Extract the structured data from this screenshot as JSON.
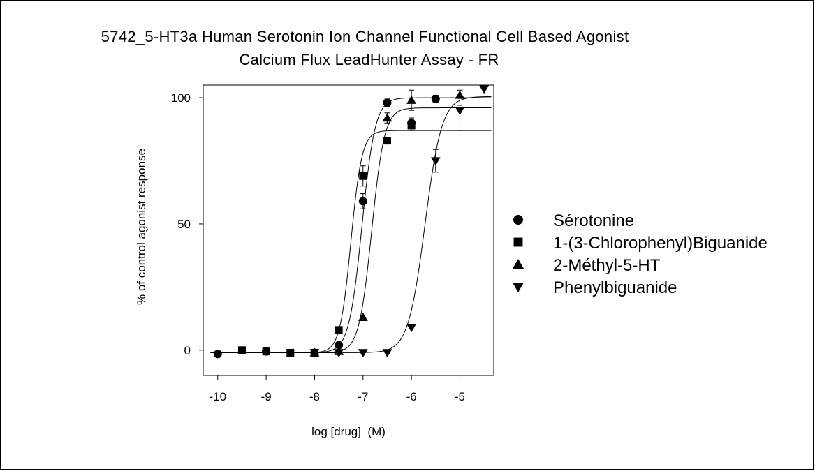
{
  "chart_data": {
    "type": "scatter",
    "title": "5742_5-HT3a Human Serotonin Ion Channel Functional Cell Based Agonist",
    "subtitle": "Calcium Flux LeadHunter Assay - FR",
    "xlabel": "log [drug]  (M)",
    "ylabel": "% of control agonist response",
    "xlim": [
      -10.3,
      -4.3
    ],
    "ylim": [
      -10,
      105
    ],
    "xticks": [
      -10,
      -9,
      -8,
      -7,
      -6,
      -5
    ],
    "xtick_labels": [
      "-10",
      "-9",
      "-8",
      "-7",
      "-6",
      "-5"
    ],
    "yticks": [
      0,
      50,
      100
    ],
    "ytick_labels": [
      "0",
      "50",
      "100"
    ],
    "grid": false,
    "legend_position": "right",
    "fitted_curves": true,
    "series": [
      {
        "name": "Sérotonine",
        "marker": "circle",
        "x": [
          -10,
          -9,
          -8,
          -7.5,
          -7,
          -6.5,
          -6,
          -5.5
        ],
        "y": [
          -1.5,
          -0.5,
          -1,
          2,
          59,
          98,
          90,
          99.5
        ],
        "err": [
          0,
          0,
          0,
          0,
          3,
          1.5,
          2,
          1.5
        ],
        "fit": {
          "bottom": -1,
          "top": 100,
          "logec50": -7.02,
          "hill": 3.2
        }
      },
      {
        "name": "1-(3-Chlorophenyl)Biguanide",
        "marker": "square",
        "x": [
          -9.5,
          -9,
          -8.5,
          -8,
          -7.5,
          -7,
          -6.5,
          -6
        ],
        "y": [
          0,
          -0.5,
          -1,
          -1,
          8,
          69,
          83,
          89
        ],
        "err": [
          0,
          0,
          0,
          0,
          0,
          4,
          0,
          2
        ],
        "fit": {
          "bottom": -1,
          "top": 87,
          "logec50": -7.25,
          "hill": 3.8
        }
      },
      {
        "name": "2-Méthyl-5-HT",
        "marker": "triangle-up",
        "x": [
          -8,
          -7.5,
          -7,
          -6.5,
          -6,
          -5
        ],
        "y": [
          -1,
          -0.5,
          13,
          92,
          99,
          101
        ],
        "err": [
          0,
          0,
          0,
          2,
          4,
          4
        ],
        "fit": {
          "bottom": -1,
          "top": 96,
          "logec50": -6.82,
          "hill": 3.3
        }
      },
      {
        "name": "Phenylbiguanide",
        "marker": "triangle-down",
        "x": [
          -8,
          -7.5,
          -7,
          -6.5,
          -6,
          -5.5,
          -5,
          -4.5
        ],
        "y": [
          -1,
          -1,
          -1,
          -1,
          9,
          75,
          95,
          103.5
        ],
        "err": [
          0,
          0,
          0,
          0,
          0,
          4.5,
          8,
          0
        ],
        "fit": {
          "bottom": -1,
          "top": 100.5,
          "logec50": -5.72,
          "hill": 2.5
        }
      }
    ]
  }
}
